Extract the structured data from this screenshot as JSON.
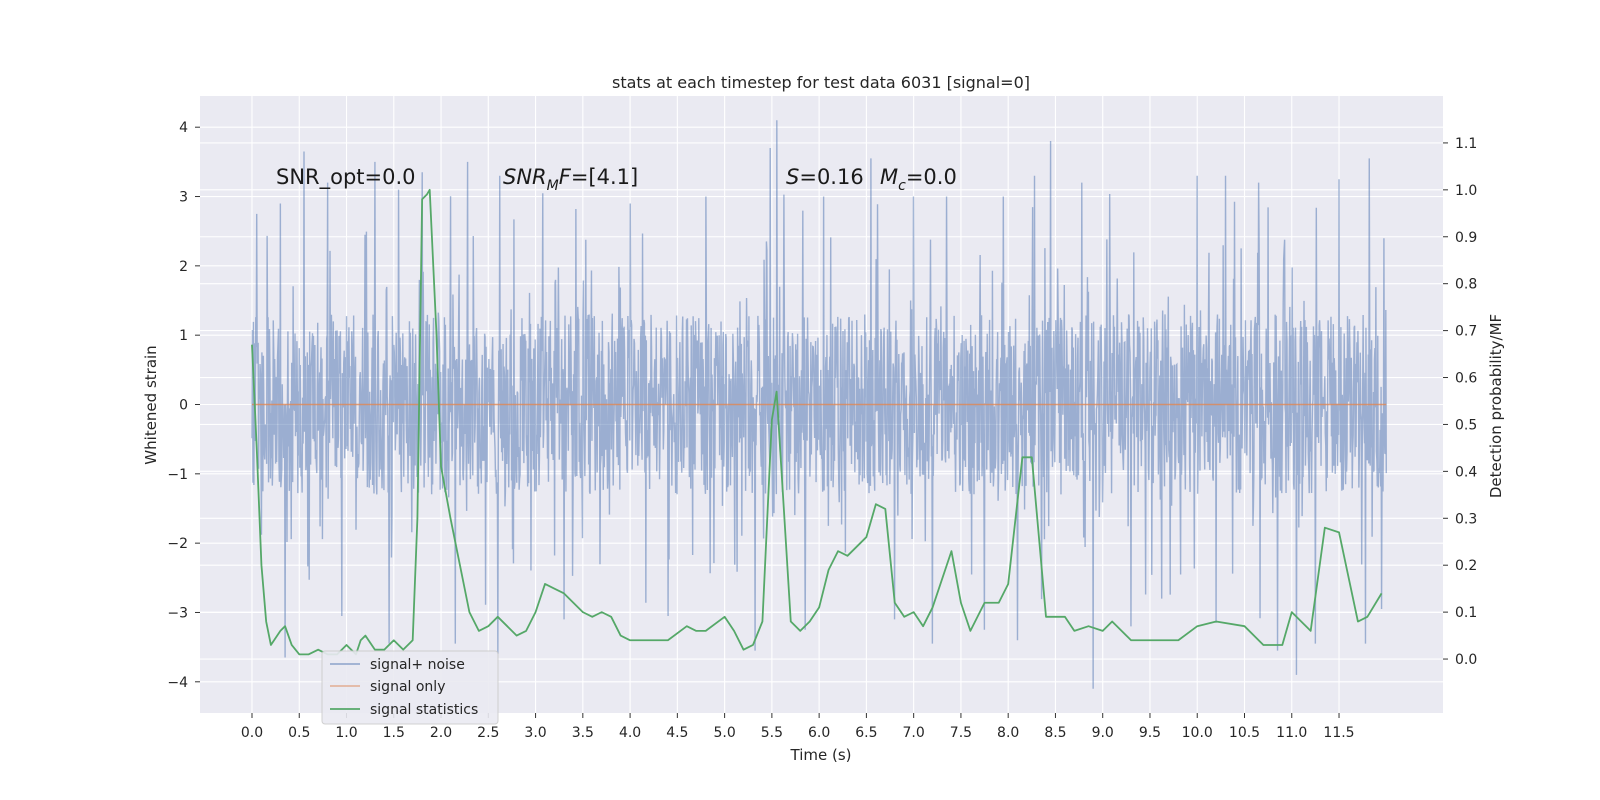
{
  "chart_data": {
    "type": "line",
    "title": "stats at each timestep for test data 6031 [signal=0]",
    "xlabel": "Time (s)",
    "ylabel": "Whitened strain",
    "y2label": "Detection probability/MF",
    "xlim": [
      -0.55,
      12.6
    ],
    "ylim": [
      -4.45,
      4.45
    ],
    "y2lim": [
      -0.115,
      1.2
    ],
    "x_ticks": [
      0.0,
      0.5,
      1.0,
      1.5,
      2.0,
      2.5,
      3.0,
      3.5,
      4.0,
      4.5,
      5.0,
      5.5,
      6.0,
      6.5,
      7.0,
      7.5,
      8.0,
      8.5,
      9.0,
      9.5,
      10.0,
      10.5,
      11.0,
      11.5
    ],
    "x_tick_labels": [
      "0.0",
      "0.5",
      "1.0",
      "1.5",
      "2.0",
      "2.5",
      "3.0",
      "3.5",
      "4.0",
      "4.5",
      "5.0",
      "5.5",
      "6.0",
      "6.5",
      "7.0",
      "7.5",
      "8.0",
      "8.5",
      "9.0",
      "9.5",
      "10.0",
      "10.5",
      "11.0",
      "11.5"
    ],
    "y_ticks": [
      -4,
      -3,
      -2,
      -1,
      0,
      1,
      2,
      3,
      4
    ],
    "y_tick_labels": [
      "−4",
      "−3",
      "−2",
      "−1",
      "0",
      "1",
      "2",
      "3",
      "4"
    ],
    "y2_ticks": [
      0.0,
      0.1,
      0.2,
      0.3,
      0.4,
      0.5,
      0.6,
      0.7,
      0.8,
      0.9,
      1.0,
      1.1
    ],
    "y2_tick_labels": [
      "0.0",
      "0.1",
      "0.2",
      "0.3",
      "0.4",
      "0.5",
      "0.6",
      "0.7",
      "0.8",
      "0.9",
      "1.0",
      "1.1"
    ],
    "grid": true,
    "legend_position": "lower-left",
    "background_color": "#eaeaf2",
    "grid_color": "#ffffff",
    "series": [
      {
        "name": "signal+ noise",
        "axis": "left",
        "color": "#4c72b0",
        "style": "dense noise trace, approx. uniform core -1.3..1.3 with spikes up to ~4.1 and down to ~-4.1",
        "envelope_peaks": [
          [
            0.05,
            2.75
          ],
          [
            0.3,
            2.9
          ],
          [
            0.55,
            3.65
          ],
          [
            0.8,
            3.2
          ],
          [
            0.95,
            2.85
          ],
          [
            1.3,
            3.5
          ],
          [
            1.55,
            3.1
          ],
          [
            1.8,
            3.35
          ],
          [
            2.28,
            3.5
          ],
          [
            2.62,
            3.3
          ],
          [
            3.3,
            3.25
          ],
          [
            4.0,
            2.9
          ],
          [
            4.8,
            3.0
          ],
          [
            5.48,
            3.7
          ],
          [
            5.55,
            4.1
          ],
          [
            6.05,
            3.0
          ],
          [
            6.55,
            3.55
          ],
          [
            7.0,
            3.0
          ],
          [
            7.35,
            3.0
          ],
          [
            7.75,
            4.0
          ],
          [
            7.95,
            3.0
          ],
          [
            8.28,
            3.3
          ],
          [
            8.45,
            3.8
          ],
          [
            8.78,
            3.2
          ],
          [
            9.3,
            3.25
          ],
          [
            10.0,
            3.3
          ],
          [
            10.3,
            3.3
          ],
          [
            10.65,
            3.2
          ],
          [
            11.05,
            3.0
          ],
          [
            11.5,
            3.25
          ],
          [
            11.82,
            3.55
          ],
          [
            11.95,
            3.45
          ]
        ],
        "envelope_troughs": [
          [
            0.35,
            -3.65
          ],
          [
            0.95,
            -3.05
          ],
          [
            1.45,
            -3.45
          ],
          [
            2.15,
            -3.45
          ],
          [
            2.6,
            -3.6
          ],
          [
            3.3,
            -3.1
          ],
          [
            4.4,
            -3.05
          ],
          [
            5.32,
            -3.55
          ],
          [
            5.85,
            -3.25
          ],
          [
            6.8,
            -3.1
          ],
          [
            7.2,
            -3.45
          ],
          [
            7.75,
            -3.25
          ],
          [
            8.1,
            -3.4
          ],
          [
            8.9,
            -4.1
          ],
          [
            9.3,
            -3.2
          ],
          [
            10.2,
            -3.15
          ],
          [
            10.85,
            -3.55
          ],
          [
            11.05,
            -3.9
          ],
          [
            11.25,
            -3.45
          ],
          [
            11.78,
            -3.45
          ],
          [
            11.95,
            -2.95
          ]
        ]
      },
      {
        "name": "signal only",
        "axis": "left",
        "color": "#dd8452",
        "x": [
          0.0,
          12.0
        ],
        "y": [
          0.0,
          0.0
        ]
      },
      {
        "name": "signal statistics",
        "axis": "right",
        "color": "#55a868",
        "x": [
          0.0,
          0.05,
          0.1,
          0.15,
          0.2,
          0.3,
          0.35,
          0.42,
          0.5,
          0.6,
          0.7,
          0.8,
          0.9,
          1.0,
          1.1,
          1.15,
          1.2,
          1.3,
          1.4,
          1.5,
          1.6,
          1.7,
          1.75,
          1.8,
          1.85,
          1.88,
          1.95,
          2.0,
          2.1,
          2.2,
          2.3,
          2.4,
          2.5,
          2.6,
          2.7,
          2.8,
          2.9,
          3.0,
          3.1,
          3.2,
          3.3,
          3.4,
          3.5,
          3.6,
          3.7,
          3.8,
          3.9,
          4.0,
          4.2,
          4.4,
          4.6,
          4.7,
          4.8,
          5.0,
          5.1,
          5.2,
          5.3,
          5.4,
          5.5,
          5.55,
          5.7,
          5.8,
          5.9,
          6.0,
          6.1,
          6.2,
          6.3,
          6.5,
          6.6,
          6.7,
          6.8,
          6.9,
          7.0,
          7.1,
          7.2,
          7.4,
          7.5,
          7.6,
          7.75,
          7.9,
          8.0,
          8.15,
          8.25,
          8.4,
          8.6,
          8.7,
          8.85,
          9.0,
          9.1,
          9.3,
          9.6,
          9.8,
          10.0,
          10.2,
          10.5,
          10.7,
          10.9,
          11.0,
          11.2,
          11.35,
          11.5,
          11.7,
          11.8,
          11.95
        ],
        "y": [
          0.67,
          0.45,
          0.2,
          0.08,
          0.03,
          0.06,
          0.07,
          0.03,
          0.01,
          0.01,
          0.02,
          0.01,
          0.01,
          0.03,
          0.01,
          0.04,
          0.05,
          0.02,
          0.02,
          0.04,
          0.02,
          0.04,
          0.3,
          0.98,
          0.99,
          1.0,
          0.7,
          0.41,
          0.3,
          0.2,
          0.1,
          0.06,
          0.07,
          0.09,
          0.07,
          0.05,
          0.06,
          0.1,
          0.16,
          0.15,
          0.14,
          0.12,
          0.1,
          0.09,
          0.1,
          0.09,
          0.05,
          0.04,
          0.04,
          0.04,
          0.07,
          0.06,
          0.06,
          0.09,
          0.06,
          0.02,
          0.03,
          0.08,
          0.51,
          0.57,
          0.08,
          0.06,
          0.08,
          0.11,
          0.19,
          0.23,
          0.22,
          0.26,
          0.33,
          0.32,
          0.12,
          0.09,
          0.1,
          0.07,
          0.11,
          0.23,
          0.12,
          0.06,
          0.12,
          0.12,
          0.16,
          0.43,
          0.43,
          0.09,
          0.09,
          0.06,
          0.07,
          0.06,
          0.08,
          0.04,
          0.04,
          0.04,
          0.07,
          0.08,
          0.07,
          0.03,
          0.03,
          0.1,
          0.06,
          0.28,
          0.27,
          0.08,
          0.09,
          0.14
        ]
      }
    ],
    "annotations": {
      "snr_opt": "SNR_opt=0.0",
      "snr_mf_prefix": "SNR",
      "snr_mf_sub": "M",
      "snr_mf_rest": "F=[4.1]",
      "s_name": "S",
      "s_value": "=0.16",
      "mc_name": "M",
      "mc_sub": "c",
      "mc_value": "=0.0"
    }
  }
}
